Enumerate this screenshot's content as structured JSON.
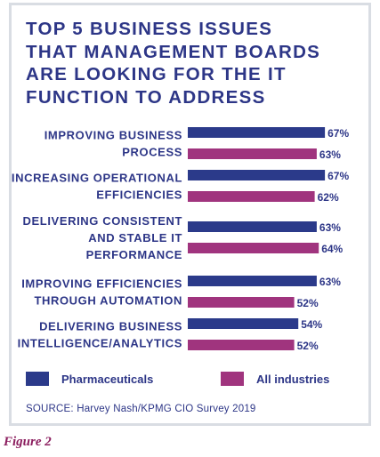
{
  "title": "TOP 5 BUSINESS ISSUES\nTHAT MANAGEMENT BOARDS\nARE LOOKING FOR THE IT\nFUNCTION TO ADDRESS",
  "source": "SOURCE: Harvey Nash/KPMG CIO Survey 2019",
  "figure_label": "Figure 2",
  "colors": {
    "title": "#2d3687",
    "pharmaceuticals": "#2b3a8a",
    "all_industries": "#a0347e",
    "figure_label": "#8b1d5e"
  },
  "chart_data": {
    "type": "bar",
    "orientation": "horizontal",
    "title": "TOP 5 BUSINESS ISSUES THAT MANAGEMENT BOARDS ARE LOOKING FOR THE IT FUNCTION TO ADDRESS",
    "categories": [
      [
        "IMPROVING BUSINESS",
        "PROCESS"
      ],
      [
        "INCREASING OPERATIONAL",
        "EFFICIENCIES"
      ],
      [
        "DELIVERING CONSISTENT",
        "AND STABLE IT",
        "PERFORMANCE"
      ],
      [
        "IMPROVING EFFICIENCIES",
        "THROUGH AUTOMATION"
      ],
      [
        "DELIVERING BUSINESS",
        "INTELLIGENCE/ANALYTICS"
      ]
    ],
    "series": [
      {
        "name": "Pharmaceuticals",
        "values": [
          67,
          67,
          63,
          63,
          54
        ]
      },
      {
        "name": "All industries",
        "values": [
          63,
          62,
          64,
          52,
          52
        ]
      }
    ],
    "value_suffix": "%",
    "legend_position": "bottom",
    "grid": false
  }
}
